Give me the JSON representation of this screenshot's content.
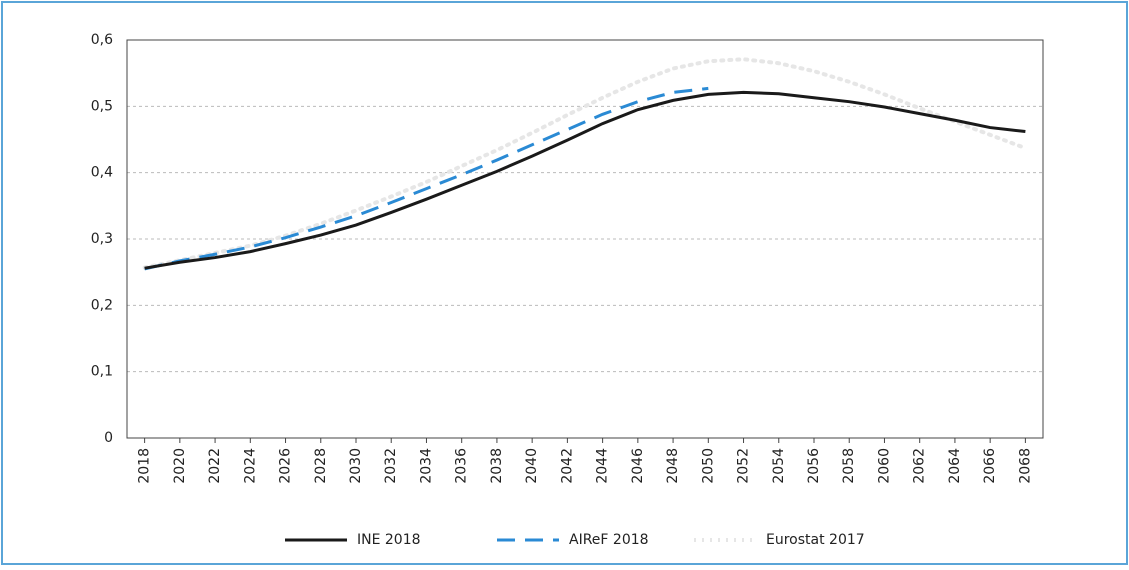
{
  "chart_data": {
    "type": "line",
    "x": [
      2018,
      2020,
      2022,
      2024,
      2026,
      2028,
      2030,
      2032,
      2034,
      2036,
      2038,
      2040,
      2042,
      2044,
      2046,
      2048,
      2050,
      2052,
      2054,
      2056,
      2058,
      2060,
      2062,
      2064,
      2066,
      2068
    ],
    "series": [
      {
        "name": "INE 2018",
        "color": "#1a1a1a",
        "style": "solid",
        "values": [
          0.256,
          0.265,
          0.272,
          0.281,
          0.293,
          0.306,
          0.321,
          0.34,
          0.36,
          0.381,
          0.402,
          0.425,
          0.449,
          0.474,
          0.495,
          0.509,
          0.518,
          0.521,
          0.519,
          0.513,
          0.507,
          0.499,
          0.489,
          0.479,
          0.468,
          0.462
        ]
      },
      {
        "name": "AIReF 2018",
        "color": "#2a8ad4",
        "style": "dashed",
        "values": [
          0.255,
          0.267,
          0.277,
          0.288,
          0.302,
          0.318,
          0.335,
          0.355,
          0.376,
          0.397,
          0.419,
          0.442,
          0.465,
          0.488,
          0.507,
          0.521,
          0.527,
          null,
          null,
          null,
          null,
          null,
          null,
          null,
          null,
          null
        ]
      },
      {
        "name": "Eurostat 2017",
        "color": "#e6e6e6",
        "style": "dotted",
        "values": [
          0.257,
          0.268,
          0.279,
          0.29,
          0.305,
          0.323,
          0.343,
          0.364,
          0.386,
          0.41,
          0.434,
          0.46,
          0.487,
          0.513,
          0.537,
          0.557,
          0.568,
          0.571,
          0.565,
          0.553,
          0.537,
          0.518,
          0.497,
          0.477,
          0.457,
          0.437
        ]
      }
    ],
    "xlim": [
      2017,
      2069
    ],
    "xticks": [
      2018,
      2020,
      2022,
      2024,
      2026,
      2028,
      2030,
      2032,
      2034,
      2036,
      2038,
      2040,
      2042,
      2044,
      2046,
      2048,
      2050,
      2052,
      2054,
      2056,
      2058,
      2060,
      2062,
      2064,
      2066,
      2068
    ],
    "ylim": [
      0,
      0.6
    ],
    "yticks": [
      0,
      {
        "value": 0.1,
        "label": "0,1"
      },
      {
        "value": 0.2,
        "label": "0,2"
      },
      {
        "value": 0.3,
        "label": "0,3"
      },
      {
        "value": 0.4,
        "label": "0,4"
      },
      {
        "value": 0.5,
        "label": "0,5"
      },
      {
        "value": 0.6,
        "label": "0,6"
      }
    ],
    "grid": true,
    "legend": "bottom"
  }
}
